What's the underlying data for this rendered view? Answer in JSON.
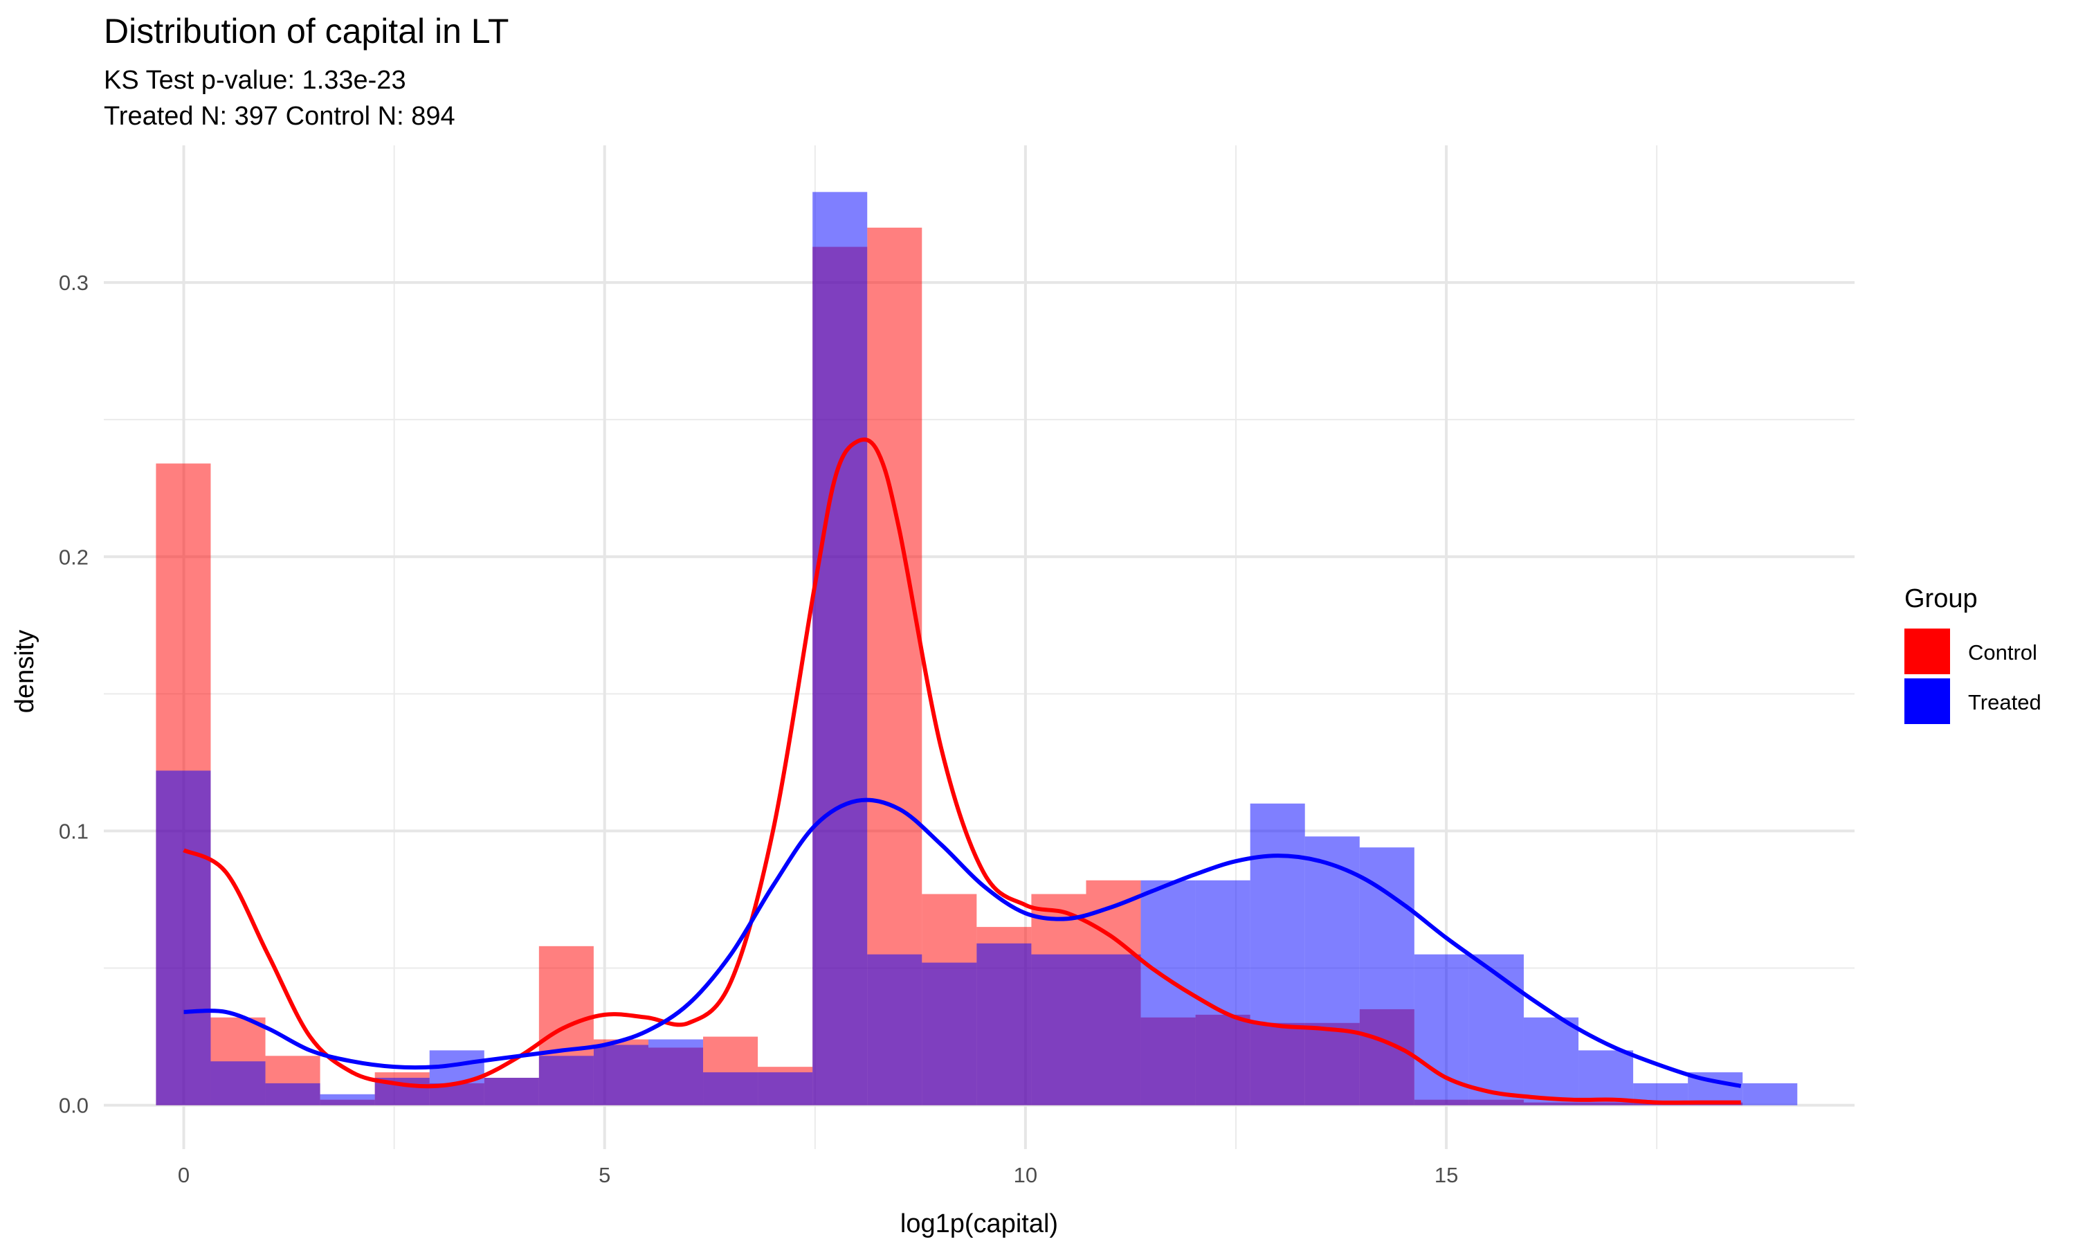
{
  "chart_data": {
    "type": "histogram",
    "title": "Distribution of capital in LT",
    "subtitle_lines": [
      "KS Test p-value: 1.33e-23",
      "Treated N: 397 Control N: 894"
    ],
    "xlabel": "log1p(capital)",
    "ylabel": "density",
    "xlim": [
      -0.95,
      19.85
    ],
    "ylim": [
      -0.016,
      0.35
    ],
    "x_ticks": [
      0,
      5,
      10,
      15
    ],
    "x_tick_labels": [
      "0",
      "5",
      "10",
      "15"
    ],
    "y_ticks": [
      0.0,
      0.1,
      0.2,
      0.3
    ],
    "y_tick_labels": [
      "0.0",
      "0.1",
      "0.2",
      "0.3"
    ],
    "grid": true,
    "legend": {
      "title": "Group",
      "position": "right",
      "entries": [
        {
          "name": "Control",
          "color": "#ff0000"
        },
        {
          "name": "Treated",
          "color": "#0000ff"
        }
      ]
    },
    "bins": {
      "start": -0.33,
      "width": 0.65,
      "count": 30
    },
    "series": [
      {
        "name": "Control",
        "color": "#ff0000",
        "histogram": [
          0.234,
          0.032,
          0.018,
          0.002,
          0.012,
          0.008,
          0.01,
          0.058,
          0.024,
          0.021,
          0.025,
          0.014,
          0.313,
          0.32,
          0.077,
          0.065,
          0.077,
          0.082,
          0.032,
          0.033,
          0.03,
          0.03,
          0.035,
          0.002,
          0.002,
          0.001,
          0.001,
          0.001,
          0.001,
          0
        ],
        "density_x": [
          0,
          0.5,
          1.0,
          1.5,
          2.0,
          2.5,
          3.0,
          3.5,
          4.0,
          4.5,
          5.0,
          5.5,
          6.0,
          6.5,
          7.0,
          7.5,
          7.75,
          8.0,
          8.25,
          8.5,
          9.0,
          9.5,
          10.0,
          10.5,
          11.0,
          11.5,
          12.0,
          12.5,
          13.0,
          13.5,
          14.0,
          14.5,
          15.0,
          15.5,
          16.0,
          16.5,
          17.0,
          17.5,
          18.0,
          18.5
        ],
        "density_y": [
          0.093,
          0.085,
          0.055,
          0.025,
          0.012,
          0.008,
          0.007,
          0.01,
          0.018,
          0.028,
          0.033,
          0.032,
          0.03,
          0.045,
          0.1,
          0.19,
          0.23,
          0.242,
          0.238,
          0.21,
          0.13,
          0.085,
          0.073,
          0.07,
          0.062,
          0.05,
          0.04,
          0.032,
          0.029,
          0.028,
          0.026,
          0.02,
          0.01,
          0.005,
          0.003,
          0.002,
          0.002,
          0.001,
          0.001,
          0.001
        ]
      },
      {
        "name": "Treated",
        "color": "#0000ff",
        "histogram": [
          0.122,
          0.016,
          0.008,
          0.004,
          0.01,
          0.02,
          0.01,
          0.018,
          0.022,
          0.024,
          0.012,
          0.012,
          0.333,
          0.055,
          0.052,
          0.059,
          0.055,
          0.055,
          0.082,
          0.082,
          0.11,
          0.098,
          0.094,
          0.055,
          0.055,
          0.032,
          0.02,
          0.008,
          0.012,
          0.008
        ],
        "density_x": [
          0,
          0.5,
          1.0,
          1.5,
          2.0,
          2.5,
          3.0,
          3.5,
          4.0,
          4.5,
          5.0,
          5.5,
          6.0,
          6.5,
          7.0,
          7.5,
          8.0,
          8.5,
          9.0,
          9.5,
          10.0,
          10.5,
          11.0,
          11.5,
          12.0,
          12.5,
          13.0,
          13.5,
          14.0,
          14.5,
          15.0,
          15.5,
          16.0,
          16.5,
          17.0,
          17.5,
          18.0,
          18.5
        ],
        "density_y": [
          0.034,
          0.034,
          0.028,
          0.02,
          0.016,
          0.014,
          0.014,
          0.016,
          0.018,
          0.02,
          0.022,
          0.027,
          0.037,
          0.055,
          0.08,
          0.102,
          0.111,
          0.108,
          0.095,
          0.08,
          0.07,
          0.068,
          0.072,
          0.078,
          0.084,
          0.089,
          0.091,
          0.089,
          0.083,
          0.073,
          0.061,
          0.05,
          0.039,
          0.029,
          0.021,
          0.015,
          0.01,
          0.007
        ]
      }
    ]
  }
}
